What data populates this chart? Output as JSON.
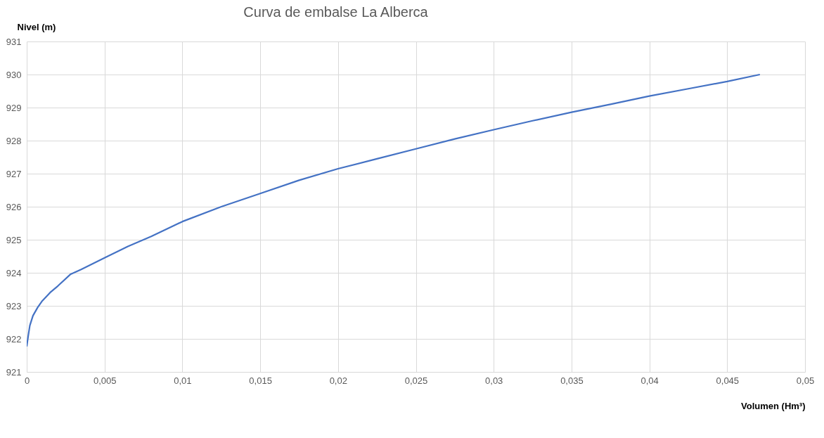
{
  "chart_data": {
    "type": "line",
    "title": "Curva de embalse La Alberca",
    "xlabel": "Volumen (Hm³)",
    "ylabel": "Nivel (m)",
    "x": [
      0,
      0.0001,
      0.0002,
      0.0004,
      0.0007,
      0.001,
      0.0015,
      0.002,
      0.0028,
      0.0035,
      0.005,
      0.0065,
      0.008,
      0.01,
      0.0125,
      0.015,
      0.0175,
      0.02,
      0.0225,
      0.025,
      0.0275,
      0.03,
      0.0325,
      0.035,
      0.0375,
      0.04,
      0.0425,
      0.045,
      0.0471
    ],
    "series": [
      {
        "color": "#4472c4",
        "values": [
          921.77,
          922.1,
          922.4,
          922.7,
          922.95,
          923.15,
          923.4,
          923.6,
          923.95,
          924.1,
          924.45,
          924.8,
          925.1,
          925.55,
          926.0,
          926.4,
          926.8,
          927.15,
          927.45,
          927.75,
          928.05,
          928.33,
          928.6,
          928.86,
          929.1,
          929.35,
          929.57,
          929.79,
          930.0
        ]
      }
    ],
    "xlim": [
      0,
      0.05
    ],
    "ylim": [
      921,
      931
    ],
    "xticks": [
      {
        "value": 0,
        "label": "0"
      },
      {
        "value": 0.005,
        "label": "0,005"
      },
      {
        "value": 0.01,
        "label": "0,01"
      },
      {
        "value": 0.015,
        "label": "0,015"
      },
      {
        "value": 0.02,
        "label": "0,02"
      },
      {
        "value": 0.025,
        "label": "0,025"
      },
      {
        "value": 0.03,
        "label": "0,03"
      },
      {
        "value": 0.035,
        "label": "0,035"
      },
      {
        "value": 0.04,
        "label": "0,04"
      },
      {
        "value": 0.045,
        "label": "0,045"
      },
      {
        "value": 0.05,
        "label": "0,05"
      }
    ],
    "yticks": [
      921,
      922,
      923,
      924,
      925,
      926,
      927,
      928,
      929,
      930,
      931
    ],
    "grid": true,
    "marker": "none",
    "line_style": "solid"
  }
}
